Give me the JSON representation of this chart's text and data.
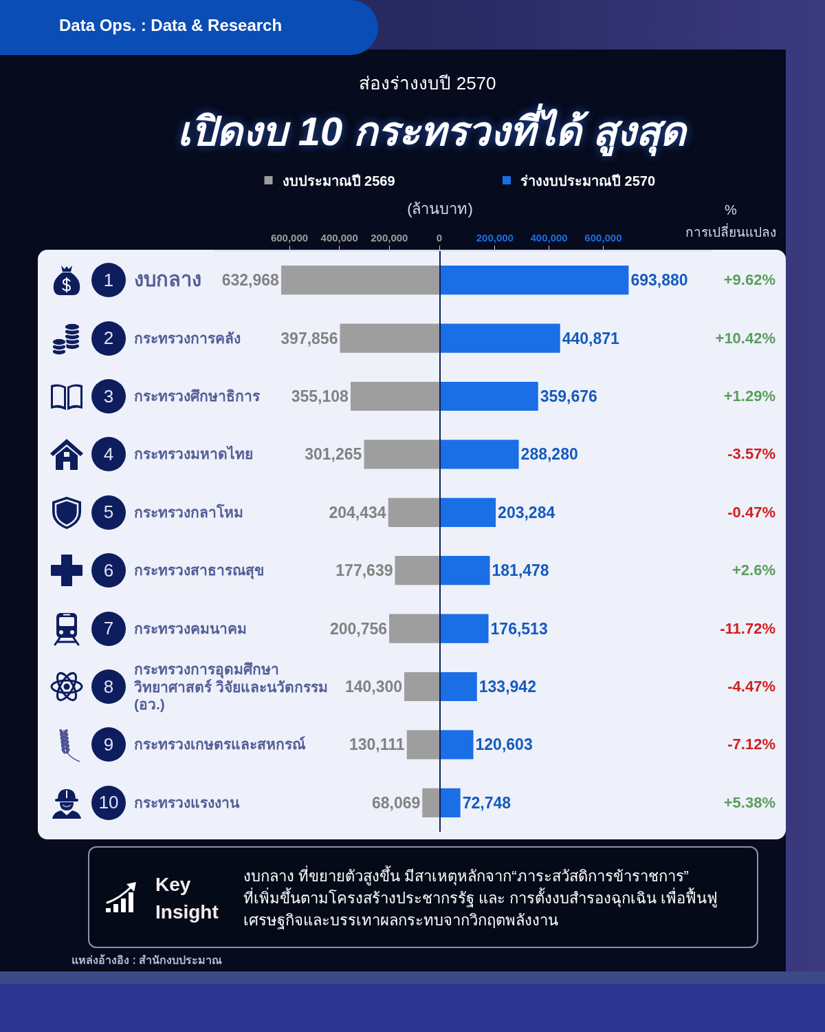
{
  "chart_data": [
    {
      "type": "bar",
      "orientation": "horizontal",
      "title": "เปิดงบ 10 กระทรวงที่ได้ สูงสุด",
      "subtitle": "ส่องร่างงบปี 2570",
      "xlabel": "(ล้านบาท)",
      "categories": [
        "งบกลาง",
        "กระทรวงการคลัง",
        "กระทรวงศึกษาธิการ",
        "กระทรวงมหาดไทย",
        "กระทรวงกลาโหม",
        "กระทรวงสาธารณสุข",
        "กระทรวงคมนาคม",
        "กระทรวงการอุดมศึกษา วิทยาศาสตร์ วิจัยและนวัตกรรม (อว.)",
        "กระทรวงเกษตรและสหกรณ์",
        "กระทรวงแรงงาน"
      ],
      "y2_categories": [
        "1",
        "2",
        "3",
        "4",
        "5",
        "6",
        "7",
        "8",
        "9",
        "10"
      ],
      "series": [
        {
          "name": "งบประมาณปี 2569",
          "color": "#9e9e9e",
          "values": [
            632968,
            397856,
            355108,
            301265,
            204434,
            177639,
            200756,
            140300,
            130111,
            68069
          ],
          "value_labels": [
            "632,968",
            "397,856",
            "355,108",
            "301,265",
            "204,434",
            "177,639",
            "200,756",
            "140,300",
            "130,111",
            "68,069"
          ]
        }
      ],
      "xlim": [
        900000,
        0
      ],
      "xticks": [
        {
          "value": 600000,
          "label": "600,000"
        },
        {
          "value": 400000,
          "label": "400,000"
        },
        {
          "value": 200000,
          "label": "200,000"
        },
        0
      ],
      "legend": "top",
      "annotations": [
        "Data Ops. : Data & Research",
        "แหล่งอ้างอิง : สำนักงบประมาณ"
      ]
    },
    {
      "type": "bar",
      "orientation": "horizontal",
      "categories": [
        null,
        null,
        null,
        null,
        null,
        null,
        null,
        null,
        null,
        null
      ],
      "series": [
        {
          "name": "ร่างงบประมาณปี 2570",
          "color": "#1a6ee6",
          "values": [
            693880,
            440871,
            359676,
            288280,
            203284,
            181478,
            176513,
            133942,
            120603,
            72748
          ],
          "value_labels": [
            "693,880",
            "440,871",
            "359,676",
            "288,280",
            "203,284",
            "181,478",
            "176,513",
            "133,942",
            "120,603",
            "72,748"
          ]
        }
      ],
      "xlim": [
        0,
        1000000
      ],
      "xticks": [
        {
          "value": 200000,
          "label": "200,000"
        },
        {
          "value": 400000,
          "label": "400,000"
        },
        {
          "value": 600000,
          "label": "600,000"
        }
      ],
      "legend": "top"
    },
    {
      "type": "other",
      "title": "%",
      "subtitle": "การเปลี่ยนแปลง",
      "annotations": [
        "+9.62%",
        "+10.42%",
        "+1.29%",
        "-3.57%",
        "-0.47%",
        "+2.6%",
        "-11.72%",
        "-4.47%",
        "-7.12%",
        "+5.38%"
      ],
      "colors": [
        "#5a9e5a",
        "#5a9e5a",
        "#5a9e5a",
        "#d11f1f",
        "#d11f1f",
        "#5a9e5a",
        "#d11f1f",
        "#d11f1f",
        "#d11f1f",
        "#5a9e5a"
      ]
    },
    {
      "type": "other",
      "title": "Key Insight",
      "annotations": [
        "งบกลาง ที่ขยายตัวสูงขึ้น มีสาเหตุหลักจาก“ภาระสวัสดิการข้าราชการ”\nที่เพิ่มขึ้นตามโครงสร้างประชากรรัฐ และ การตั้งงบสำรองฉุกเฉิน เพื่อฟื้นฟู\nเศรษฐกิจและบรรเทาผลกระทบจากวิกฤตพลังงาน"
      ]
    }
  ]
}
